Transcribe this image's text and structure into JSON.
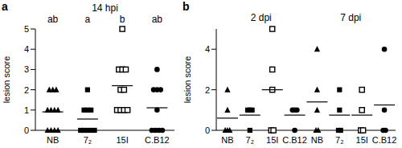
{
  "chart_data": [
    {
      "type": "scatter",
      "title": "a",
      "subtitle": "14 hpi",
      "y_label": "lesion score",
      "ylim": [
        0,
        5
      ],
      "yticks": [
        0,
        1,
        2,
        3,
        4,
        5
      ],
      "series": [
        {
          "name": "NB",
          "marker": "triangle",
          "annotation": "ab",
          "values": [
            2,
            2,
            2,
            1,
            1,
            1,
            1,
            0,
            0,
            0,
            0
          ]
        },
        {
          "name": "7₂",
          "marker": "square",
          "annotation": "a",
          "values": [
            2,
            1,
            1,
            1,
            0,
            0,
            0,
            0,
            0
          ]
        },
        {
          "name": "15I",
          "marker": "square-open",
          "annotation": "b",
          "values": [
            5,
            3,
            3,
            3,
            2,
            2,
            1,
            1,
            1,
            1
          ]
        },
        {
          "name": "C.B12",
          "marker": "circle",
          "annotation": "ab",
          "values": [
            3,
            2,
            2,
            2,
            1,
            0,
            0,
            0,
            0
          ]
        }
      ]
    },
    {
      "type": "scatter",
      "title": "b",
      "y_label": "lesion score",
      "ylim": [
        0,
        5
      ],
      "yticks": [
        0,
        2,
        4
      ],
      "groups": [
        {
          "label": "2 dpi",
          "series": [
            {
              "name": "NB",
              "marker": "triangle",
              "values": [
                2,
                1,
                0,
                0,
                0
              ]
            },
            {
              "name": "7₂",
              "marker": "square",
              "values": [
                1,
                1,
                1,
                0
              ]
            },
            {
              "name": "15I",
              "marker": "square-open",
              "values": [
                5,
                3,
                2,
                0,
                0
              ]
            },
            {
              "name": "C.B12",
              "marker": "circle",
              "values": [
                1,
                1,
                1,
                0
              ]
            }
          ]
        },
        {
          "label": "7 dpi",
          "series": [
            {
              "name": "NB",
              "marker": "triangle",
              "values": [
                4,
                2,
                1,
                0,
                0
              ]
            },
            {
              "name": "7₂",
              "marker": "square",
              "values": [
                2,
                1,
                0,
                0
              ]
            },
            {
              "name": "15I",
              "marker": "square-open",
              "values": [
                2,
                1,
                0,
                0
              ]
            },
            {
              "name": "C.B12",
              "marker": "circle",
              "values": [
                4,
                1,
                0,
                0
              ]
            }
          ]
        }
      ]
    }
  ]
}
